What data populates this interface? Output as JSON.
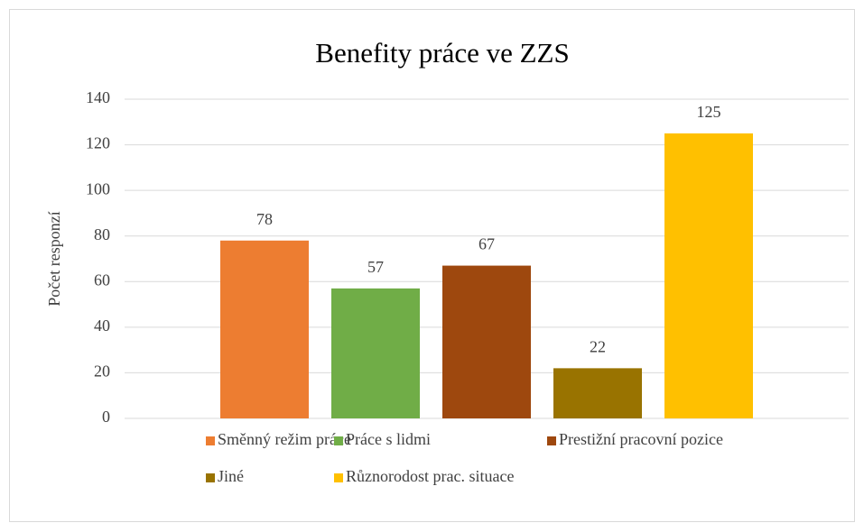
{
  "chart_data": {
    "type": "bar",
    "title": "Benefity práce ve ZZS",
    "y_label": "Počet responzí",
    "categories": [
      null
    ],
    "series": [
      {
        "name": "Směnný režim práce",
        "color": "#ed7d31",
        "values": [
          78
        ]
      },
      {
        "name": "Práce s lidmi",
        "color": "#70ad47",
        "values": [
          57
        ]
      },
      {
        "name": "Prestižní pracovní pozice",
        "color": "#9e480e",
        "values": [
          67
        ]
      },
      {
        "name": "Jiné",
        "color": "#997300",
        "values": [
          22
        ]
      },
      {
        "name": "Různorodost prac. situace",
        "color": "#ffc000",
        "values": [
          125
        ]
      }
    ],
    "ylim": [
      0,
      140
    ],
    "yticks": [
      0,
      20,
      40,
      60,
      80,
      100,
      120,
      140
    ],
    "grid": true,
    "legend": "bottom"
  }
}
